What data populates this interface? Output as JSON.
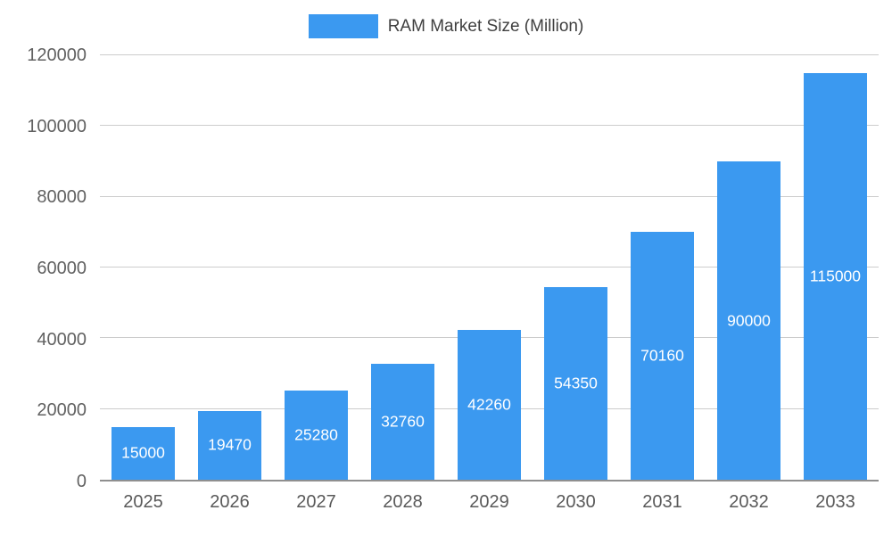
{
  "chart_data": {
    "type": "bar",
    "title": "RAM Market Size (Million)",
    "series_name": "RAM Market Size (Million)",
    "categories": [
      "2025",
      "2026",
      "2027",
      "2028",
      "2029",
      "2030",
      "2031",
      "2032",
      "2033"
    ],
    "values": [
      15000,
      19470,
      25280,
      32760,
      42260,
      54350,
      70160,
      90000,
      115000
    ],
    "value_labels": [
      "15000",
      "19470",
      "25280",
      "32760",
      "42260",
      "54350",
      "70160",
      "90000",
      "115000"
    ],
    "xlabel": "",
    "ylabel": "",
    "ylim": [
      0,
      120000
    ],
    "yticks": [
      0,
      20000,
      40000,
      60000,
      80000,
      100000,
      120000
    ],
    "ytick_labels": [
      "0",
      "20000",
      "40000",
      "60000",
      "80000",
      "100000",
      "120000"
    ],
    "grid": true,
    "legend_position": "top-center",
    "bar_color": "#3B99F0",
    "bar_label_color": "#ffffff",
    "axis_text_color": "#616161",
    "grid_color": "#cccccc",
    "background_color": "#ffffff"
  }
}
